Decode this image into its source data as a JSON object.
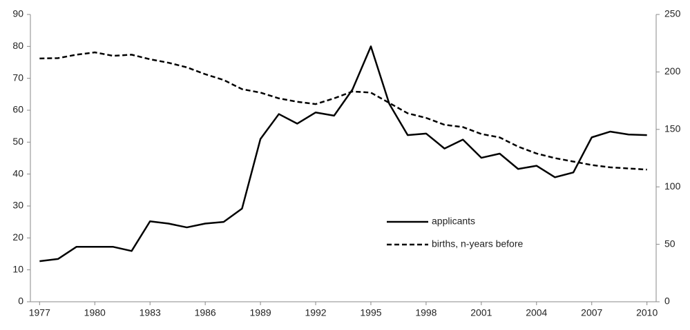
{
  "chart_data": {
    "type": "line",
    "x": [
      1977,
      1978,
      1979,
      1980,
      1981,
      1982,
      1983,
      1984,
      1985,
      1986,
      1987,
      1988,
      1989,
      1990,
      1991,
      1992,
      1993,
      1994,
      1995,
      1996,
      1997,
      1998,
      1999,
      2000,
      2001,
      2002,
      2003,
      2004,
      2005,
      2006,
      2007,
      2008,
      2009,
      2010
    ],
    "series": [
      {
        "name": "applicants",
        "color": "#000000",
        "style": "solid",
        "values": [
          12.7,
          13.4,
          17.2,
          17.2,
          17.2,
          15.9,
          25.2,
          24.5,
          23.3,
          24.5,
          25,
          29.2,
          51,
          58.8,
          55.8,
          59.3,
          58.3,
          66.5,
          80,
          62,
          52.2,
          52.7,
          48,
          50.8,
          45.1,
          46.4,
          41.6,
          42.6,
          39,
          40.5,
          51.5,
          53.3,
          52.4,
          52.2
        ]
      },
      {
        "name": "births, n-years before",
        "color": "#000000",
        "style": "dashed",
        "axis": "y2",
        "values": [
          211.7,
          212,
          215,
          217,
          214,
          215,
          211,
          208,
          204,
          198,
          193,
          185,
          182,
          177,
          174,
          172,
          177,
          183,
          182,
          173,
          164,
          160,
          154,
          152,
          146,
          143,
          135,
          129,
          125,
          122,
          119,
          117,
          116,
          115
        ]
      }
    ],
    "xlim": [
      1976.5,
      2010.5
    ],
    "xticks": [
      1977,
      1980,
      1983,
      1986,
      1989,
      1992,
      1995,
      1998,
      2001,
      2004,
      2007,
      2010
    ],
    "ylim": [
      0,
      90
    ],
    "yticks": [
      0,
      10,
      20,
      30,
      40,
      50,
      60,
      70,
      80,
      90
    ],
    "y2lim": [
      0,
      250
    ],
    "y2ticks": [
      0,
      50,
      100,
      150,
      200,
      250
    ],
    "grid": false,
    "legend": "center"
  }
}
